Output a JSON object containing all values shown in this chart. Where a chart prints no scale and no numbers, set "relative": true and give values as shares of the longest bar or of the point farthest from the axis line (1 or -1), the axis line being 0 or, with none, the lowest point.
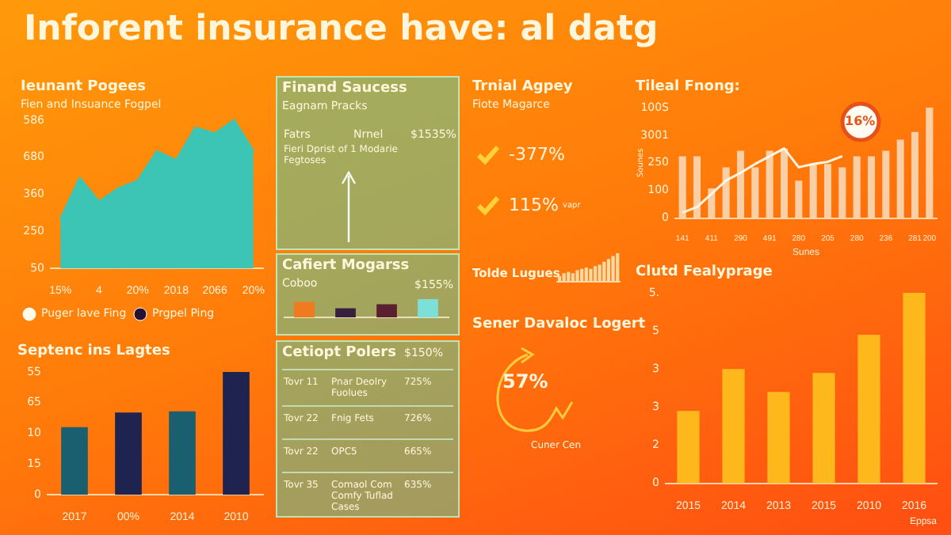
{
  "chart_data": [
    {
      "type": "other",
      "title": "Inforent insurance have: al datg"
    },
    {
      "type": "area",
      "title": "Ieunant Pogees",
      "subtitle": "Fien and Insuance Fogpel",
      "categories": [
        "15%",
        null,
        "4",
        null,
        "20%",
        null,
        "2018",
        null,
        "2066",
        null,
        "20%"
      ],
      "values": [
        0.33,
        0.61,
        0.45,
        0.54,
        0.59,
        0.79,
        0.73,
        0.95,
        0.91,
        1,
        0.79
      ],
      "color": "#3cc4b4",
      "relative": true,
      "annotations": [
        "50",
        "250",
        "360",
        "680",
        "586",
        "Puger lave Fing",
        "Prgpel Ping"
      ]
    },
    {
      "type": "other",
      "title": "Finand Saucess",
      "subtitle": "Eagnam Pracks",
      "annotations": [
        "Fatrs",
        "Nrnel",
        "$1535%",
        "Fieri Dprist of 1 Modarie Fegtoses"
      ]
    },
    {
      "type": "bar",
      "title": "Cafiert Mogarss",
      "subtitle": "Coboo",
      "categories": [
        null,
        null,
        null,
        null
      ],
      "values": [
        0.85,
        0.5,
        0.72,
        1
      ],
      "colors": [
        "#f07a20",
        "#3a2040",
        "#5a2030",
        "#7de0d8"
      ],
      "relative": true,
      "annotations": [
        "$155%"
      ]
    },
    {
      "type": "other",
      "title": "Cetiopt Polers",
      "annotations": [
        "$150%",
        "Tovr 11",
        "Pnar Deolry Fuolues",
        "725%",
        "Tovr 22",
        "Fnig Fets",
        "726%",
        "Tovr 22",
        "OPC5",
        "665%",
        "Tovr 35",
        "Comaol Com Comfy Tuflad Cases",
        "635%"
      ]
    },
    {
      "type": "other",
      "title": "Trnial Agpey",
      "subtitle": "Fiote Magarce",
      "annotations": [
        "-377%",
        "115%",
        "vapr"
      ]
    },
    {
      "type": "bar",
      "title": "Tileal Fnong:",
      "xlabel": "Sunes",
      "ylabel": "Sounes",
      "categories": [
        "141",
        null,
        "411",
        null,
        "290",
        null,
        "491",
        null,
        "280",
        null,
        "205",
        null,
        "280",
        null,
        "236",
        null,
        "281",
        "200"
      ],
      "relative": true,
      "series": [
        {
          "type": "bar",
          "color": "#fbcfa6",
          "values": [
            0.56,
            0.56,
            0.27,
            0.46,
            0.61,
            0.46,
            0.61,
            0.63,
            0.34,
            0.49,
            0.49,
            0.46,
            0.56,
            0.56,
            0.61,
            0.71,
            0.78,
            1
          ]
        },
        {
          "type": "line",
          "color": "#fff4e0",
          "values": [
            0.05,
            0.1,
            0.22,
            0.34,
            0.41,
            0.49,
            0.56,
            0.63,
            0.46,
            0.49,
            0.51,
            0.56,
            null,
            null,
            null,
            null,
            null,
            null
          ]
        }
      ],
      "annotations": [
        "0",
        "100",
        "250",
        "3001",
        "100S",
        "16%"
      ]
    },
    {
      "type": "bar",
      "title": "Tolde Lugues",
      "categories": [
        null,
        null,
        null,
        null,
        null,
        null,
        null,
        null,
        null,
        null,
        null,
        null,
        null,
        null
      ],
      "values": [
        0.2,
        0.3,
        0.35,
        0.3,
        0.4,
        0.45,
        0.5,
        0.45,
        0.55,
        0.6,
        0.7,
        0.8,
        0.9,
        1
      ],
      "color": "#fcd9a0",
      "relative": true
    },
    {
      "type": "other",
      "title": "Sener Davaloc Logert",
      "annotations": [
        "57%",
        "Cuner Cen"
      ]
    },
    {
      "type": "bar",
      "title": "Septenc ins Lagtes",
      "categories": [
        "2017",
        "00%",
        "2014",
        "2010"
      ],
      "values": [
        0.55,
        0.67,
        0.68,
        1
      ],
      "colors": [
        "#1a5f70",
        "#1f2350",
        "#1a5f70",
        "#1f2350"
      ],
      "relative": true,
      "annotations": [
        "0",
        "15",
        "10",
        "65",
        "55"
      ]
    },
    {
      "type": "bar",
      "title": "Clutd Fealyprage",
      "xlabel": "Eppsa",
      "categories": [
        "2015",
        "2014",
        "2013",
        "2015",
        "2010",
        "2016"
      ],
      "values": [
        0.38,
        0.6,
        0.48,
        0.58,
        0.78,
        1
      ],
      "color": "#ffb81c",
      "relative": true,
      "annotations": [
        "0",
        "2",
        "3",
        "3",
        "5",
        "5."
      ]
    }
  ]
}
